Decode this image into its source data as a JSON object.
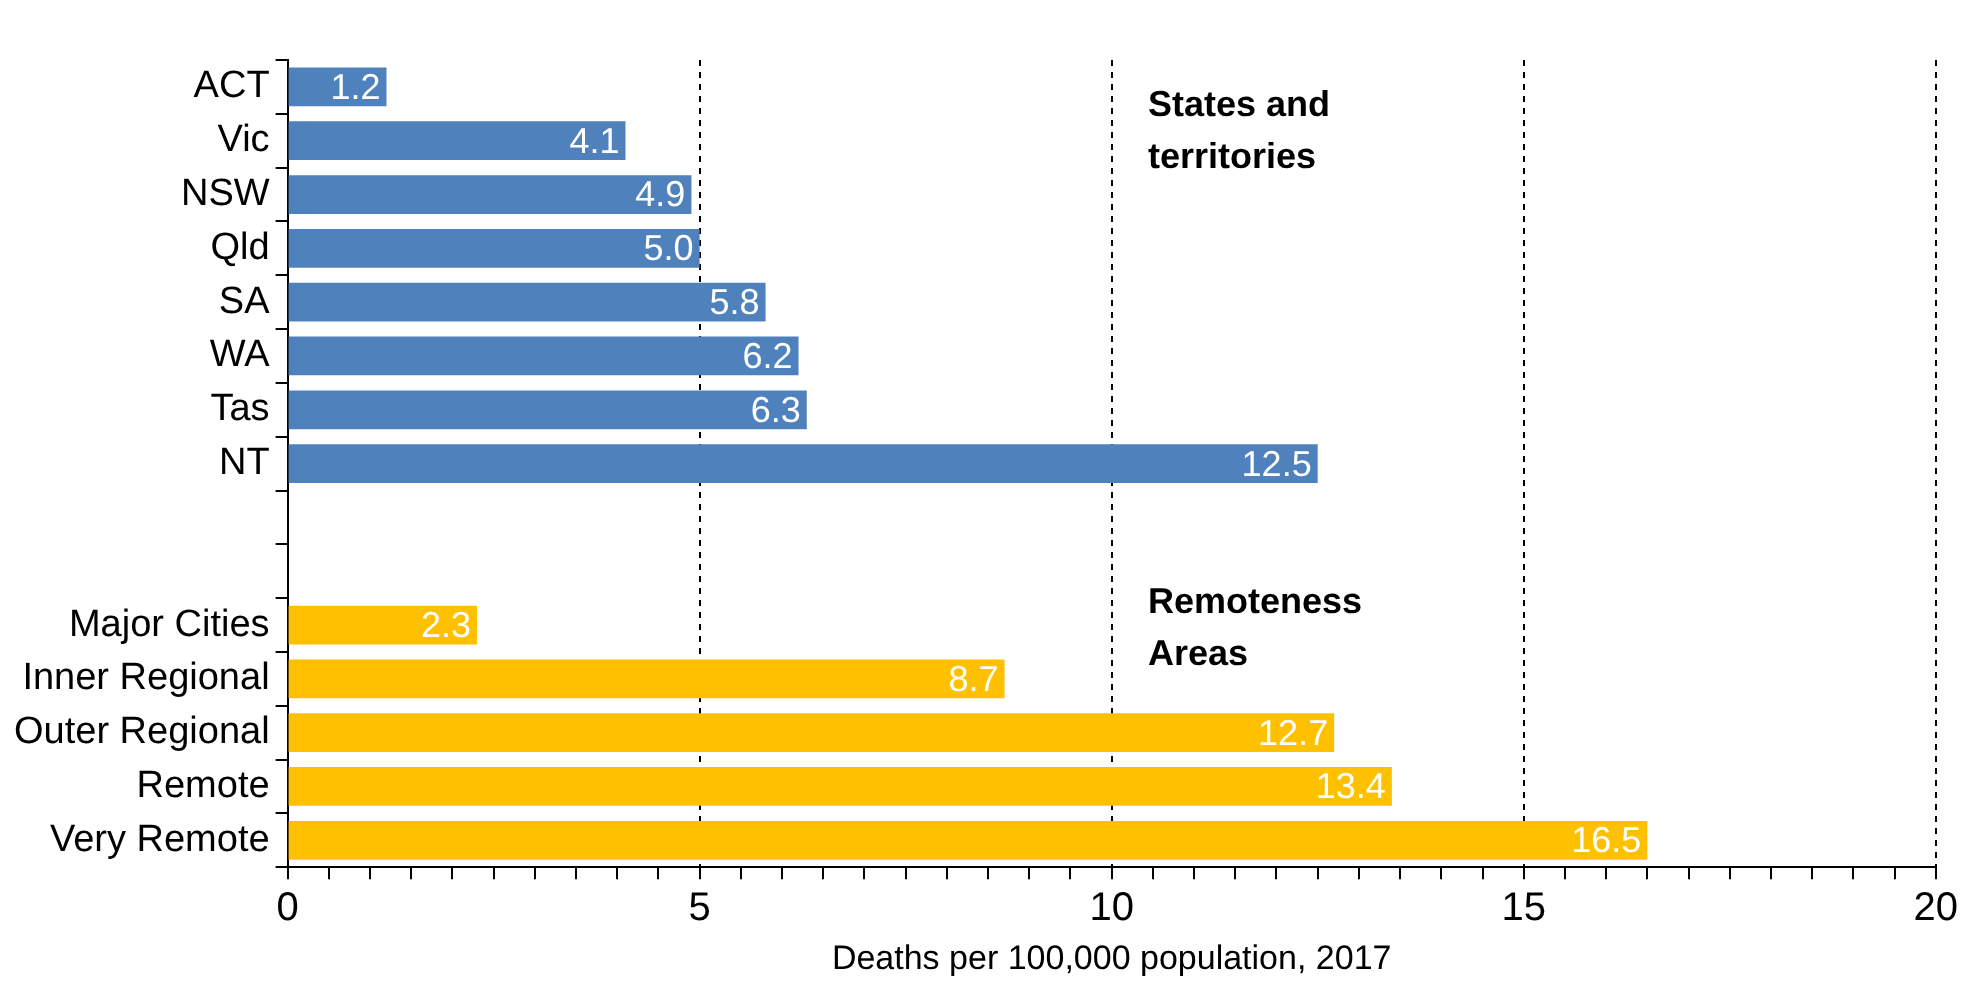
{
  "chart_data": {
    "type": "bar",
    "orientation": "horizontal",
    "xlabel": "Deaths per 100,000 population, 2017",
    "categories": [
      "ACT",
      "Vic",
      "NSW",
      "Qld",
      "SA",
      "WA",
      "Tas",
      "NT",
      null,
      null,
      "Major Cities",
      "Inner Regional",
      "Outer Regional",
      "Remote",
      "Very Remote"
    ],
    "values": [
      1.2,
      4.1,
      4.9,
      5.0,
      5.8,
      6.2,
      6.3,
      12.5,
      null,
      null,
      2.3,
      8.7,
      12.7,
      13.4,
      16.5
    ],
    "value_labels": [
      "1.2",
      "4.1",
      "4.9",
      "5.0",
      "5.8",
      "6.2",
      "6.3",
      "12.5",
      null,
      null,
      "2.3",
      "8.7",
      "12.7",
      "13.4",
      "16.5"
    ],
    "colors": [
      "#4f81bd",
      "#4f81bd",
      "#4f81bd",
      "#4f81bd",
      "#4f81bd",
      "#4f81bd",
      "#4f81bd",
      "#4f81bd",
      "#4f81bd",
      "#4f81bd",
      "#ffc000",
      "#ffc000",
      "#ffc000",
      "#ffc000",
      "#ffc000"
    ],
    "xlim": [
      0,
      20
    ],
    "xticks": [
      0,
      {
        "value": 0.5,
        "label": null
      },
      {
        "value": 1,
        "label": null
      },
      {
        "value": 1.5,
        "label": null
      },
      {
        "value": 2,
        "label": null
      },
      {
        "value": 2.5,
        "label": null
      },
      {
        "value": 3,
        "label": null
      },
      {
        "value": 3.5,
        "label": null
      },
      {
        "value": 4,
        "label": null
      },
      {
        "value": 4.5,
        "label": null
      },
      5,
      {
        "value": 5.5,
        "label": null
      },
      {
        "value": 6,
        "label": null
      },
      {
        "value": 6.5,
        "label": null
      },
      {
        "value": 7,
        "label": null
      },
      {
        "value": 7.5,
        "label": null
      },
      {
        "value": 8,
        "label": null
      },
      {
        "value": 8.5,
        "label": null
      },
      {
        "value": 9,
        "label": null
      },
      {
        "value": 9.5,
        "label": null
      },
      10,
      {
        "value": 10.5,
        "label": null
      },
      {
        "value": 11,
        "label": null
      },
      {
        "value": 11.5,
        "label": null
      },
      {
        "value": 12,
        "label": null
      },
      {
        "value": 12.5,
        "label": null
      },
      {
        "value": 13,
        "label": null
      },
      {
        "value": 13.5,
        "label": null
      },
      {
        "value": 14,
        "label": null
      },
      {
        "value": 14.5,
        "label": null
      },
      15,
      {
        "value": 15.5,
        "label": null
      },
      {
        "value": 16,
        "label": null
      },
      {
        "value": 16.5,
        "label": null
      },
      {
        "value": 17,
        "label": null
      },
      {
        "value": 17.5,
        "label": null
      },
      {
        "value": 18,
        "label": null
      },
      {
        "value": 18.5,
        "label": null
      },
      {
        "value": 19,
        "label": null
      },
      {
        "value": 19.5,
        "label": null
      },
      20
    ],
    "grid": "x",
    "legend": false,
    "annotations": [
      "States and territories",
      "Remoteness Areas"
    ]
  }
}
